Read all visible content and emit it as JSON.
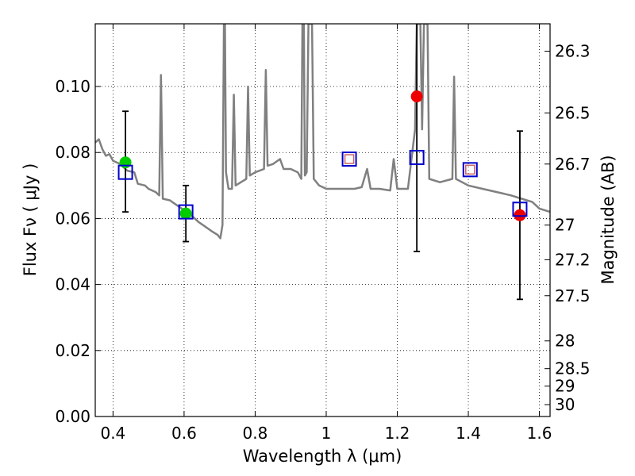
{
  "chart_data": {
    "type": "scatter",
    "xlabel": "Wavelength  λ (μm)",
    "ylabel_left": "Flux  Fν  ( μJy )",
    "ylabel_right": "Magnitude (AB)",
    "xlim": [
      0.35,
      1.63
    ],
    "ylim": [
      0.0,
      0.119
    ],
    "grid": true,
    "x_ticks": [
      0.4,
      0.6,
      0.8,
      1.0,
      1.2,
      1.4,
      1.6
    ],
    "x_tick_labels": [
      "0.4",
      "0.6",
      "0.8",
      "1",
      "1.2",
      "1.4",
      "1.6"
    ],
    "y_ticks": [
      0.0,
      0.02,
      0.04,
      0.06,
      0.08,
      0.1
    ],
    "y_tick_labels": [
      "0.00",
      "0.02",
      "0.04",
      "0.06",
      "0.08",
      "0.10"
    ],
    "right_ticks": [
      {
        "flux": 0.1107,
        "label": "26.3"
      },
      {
        "flux": 0.092,
        "label": "26.5"
      },
      {
        "flux": 0.0765,
        "label": "26.7"
      },
      {
        "flux": 0.058,
        "label": "27"
      },
      {
        "flux": 0.0475,
        "label": "27.2"
      },
      {
        "flux": 0.0366,
        "label": "27.5"
      },
      {
        "flux": 0.0229,
        "label": "28"
      },
      {
        "flux": 0.0145,
        "label": "28.5"
      },
      {
        "flux": 0.0092,
        "label": "29"
      },
      {
        "flux": 0.0036,
        "label": "30"
      }
    ],
    "template_spectrum": {
      "color": "#808080",
      "points": [
        [
          0.35,
          0.083
        ],
        [
          0.36,
          0.084
        ],
        [
          0.37,
          0.081
        ],
        [
          0.38,
          0.079
        ],
        [
          0.39,
          0.0795
        ],
        [
          0.4,
          0.0775
        ],
        [
          0.42,
          0.0765
        ],
        [
          0.44,
          0.0745
        ],
        [
          0.46,
          0.074
        ],
        [
          0.47,
          0.0705
        ],
        [
          0.49,
          0.07
        ],
        [
          0.5,
          0.069
        ],
        [
          0.52,
          0.068
        ],
        [
          0.53,
          0.067
        ],
        [
          0.535,
          0.1035
        ],
        [
          0.54,
          0.066
        ],
        [
          0.56,
          0.0655
        ],
        [
          0.58,
          0.064
        ],
        [
          0.6,
          0.0625
        ],
        [
          0.62,
          0.061
        ],
        [
          0.64,
          0.059
        ],
        [
          0.66,
          0.0575
        ],
        [
          0.68,
          0.056
        ],
        [
          0.695,
          0.055
        ],
        [
          0.702,
          0.054
        ],
        [
          0.708,
          0.058
        ],
        [
          0.712,
          0.119
        ],
        [
          0.715,
          0.119
        ],
        [
          0.718,
          0.074
        ],
        [
          0.725,
          0.069
        ],
        [
          0.735,
          0.069
        ],
        [
          0.74,
          0.0975
        ],
        [
          0.745,
          0.07
        ],
        [
          0.76,
          0.071
        ],
        [
          0.775,
          0.072
        ],
        [
          0.78,
          0.1
        ],
        [
          0.785,
          0.073
        ],
        [
          0.8,
          0.074
        ],
        [
          0.825,
          0.075
        ],
        [
          0.83,
          0.105
        ],
        [
          0.835,
          0.076
        ],
        [
          0.85,
          0.0765
        ],
        [
          0.87,
          0.078
        ],
        [
          0.88,
          0.075
        ],
        [
          0.9,
          0.075
        ],
        [
          0.92,
          0.074
        ],
        [
          0.93,
          0.072
        ],
        [
          0.933,
          0.119
        ],
        [
          0.937,
          0.119
        ],
        [
          0.94,
          0.073
        ],
        [
          0.945,
          0.074
        ],
        [
          0.95,
          0.119
        ],
        [
          0.96,
          0.119
        ],
        [
          0.965,
          0.072
        ],
        [
          0.98,
          0.07
        ],
        [
          1.0,
          0.069
        ],
        [
          1.05,
          0.069
        ],
        [
          1.08,
          0.069
        ],
        [
          1.1,
          0.0695
        ],
        [
          1.115,
          0.075
        ],
        [
          1.125,
          0.069
        ],
        [
          1.15,
          0.069
        ],
        [
          1.18,
          0.0685
        ],
        [
          1.19,
          0.078
        ],
        [
          1.2,
          0.069
        ],
        [
          1.23,
          0.069
        ],
        [
          1.25,
          0.087
        ],
        [
          1.255,
          0.119
        ],
        [
          1.265,
          0.119
        ],
        [
          1.27,
          0.087
        ],
        [
          1.275,
          0.119
        ],
        [
          1.285,
          0.119
        ],
        [
          1.29,
          0.072
        ],
        [
          1.32,
          0.071
        ],
        [
          1.355,
          0.072
        ],
        [
          1.36,
          0.103
        ],
        [
          1.365,
          0.072
        ],
        [
          1.4,
          0.07
        ],
        [
          1.44,
          0.069
        ],
        [
          1.48,
          0.068
        ],
        [
          1.52,
          0.067
        ],
        [
          1.55,
          0.066
        ],
        [
          1.58,
          0.065
        ],
        [
          1.6,
          0.063
        ],
        [
          1.63,
          0.062
        ]
      ]
    },
    "series": [
      {
        "marker": "circle",
        "color": "#00cc00",
        "points": [
          {
            "x": 0.435,
            "y": 0.077,
            "yerr_low": 0.062,
            "yerr_high": 0.0925
          },
          {
            "x": 0.605,
            "y": 0.0615,
            "yerr_low": 0.053,
            "yerr_high": 0.07
          }
        ]
      },
      {
        "marker": "circle",
        "color": "#ee0000",
        "points": [
          {
            "x": 1.255,
            "y": 0.097,
            "yerr_low": 0.05,
            "yerr_high": 0.119
          },
          {
            "x": 1.545,
            "y": 0.061,
            "yerr_low": 0.0355,
            "yerr_high": 0.0865
          }
        ]
      },
      {
        "marker": "open-square",
        "color": "#0000cc",
        "points": [
          {
            "x": 0.435,
            "y": 0.074
          },
          {
            "x": 0.605,
            "y": 0.062
          },
          {
            "x": 1.065,
            "y": 0.078
          },
          {
            "x": 1.255,
            "y": 0.0785
          },
          {
            "x": 1.405,
            "y": 0.0748
          },
          {
            "x": 1.545,
            "y": 0.0628
          }
        ]
      },
      {
        "marker": "small-square",
        "color": "#cc6666",
        "points": [
          {
            "x": 1.065,
            "y": 0.078
          },
          {
            "x": 1.405,
            "y": 0.0748
          }
        ]
      }
    ]
  }
}
